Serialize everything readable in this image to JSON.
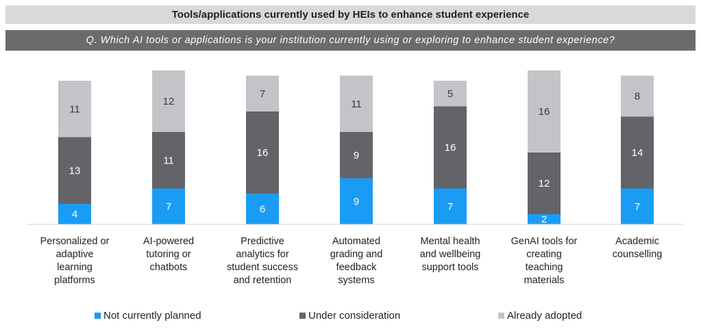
{
  "header": {
    "title": "Tools/applications currently used by HEIs to enhance student experience",
    "question": "Q. Which AI tools or applications is your institution currently using or exploring to enhance student experience?"
  },
  "colors": {
    "not_planned": "#1a9cf5",
    "under_consideration": "#636368",
    "already_adopted": "#c4c4c8",
    "axis": "#d4d4d4"
  },
  "chart_data": {
    "type": "bar",
    "stacked": true,
    "title": "Tools/applications currently used by HEIs to enhance student experience",
    "categories": [
      [
        "Personalized or",
        "adaptive",
        "learning",
        "platforms"
      ],
      [
        "AI-powered",
        "tutoring or",
        "chatbots"
      ],
      [
        "Predictive",
        "analytics for",
        "student success",
        "and retention"
      ],
      [
        "Automated",
        "grading and",
        "feedback",
        "systems"
      ],
      [
        "Mental health",
        "and wellbeing",
        "support tools"
      ],
      [
        "GenAI tools for",
        "creating",
        "teaching",
        "materials"
      ],
      [
        "Academic",
        "counselling"
      ]
    ],
    "series": [
      {
        "name": "Not currently planned",
        "values": [
          4,
          7,
          6,
          9,
          7,
          2,
          7
        ]
      },
      {
        "name": "Under consideration",
        "values": [
          13,
          11,
          16,
          9,
          16,
          12,
          14
        ]
      },
      {
        "name": "Already adopted",
        "values": [
          11,
          12,
          7,
          11,
          5,
          16,
          8
        ]
      }
    ],
    "xlabel": "",
    "ylabel": "",
    "ylim": [
      0,
      30
    ],
    "grid": false,
    "legend": "bottom"
  }
}
